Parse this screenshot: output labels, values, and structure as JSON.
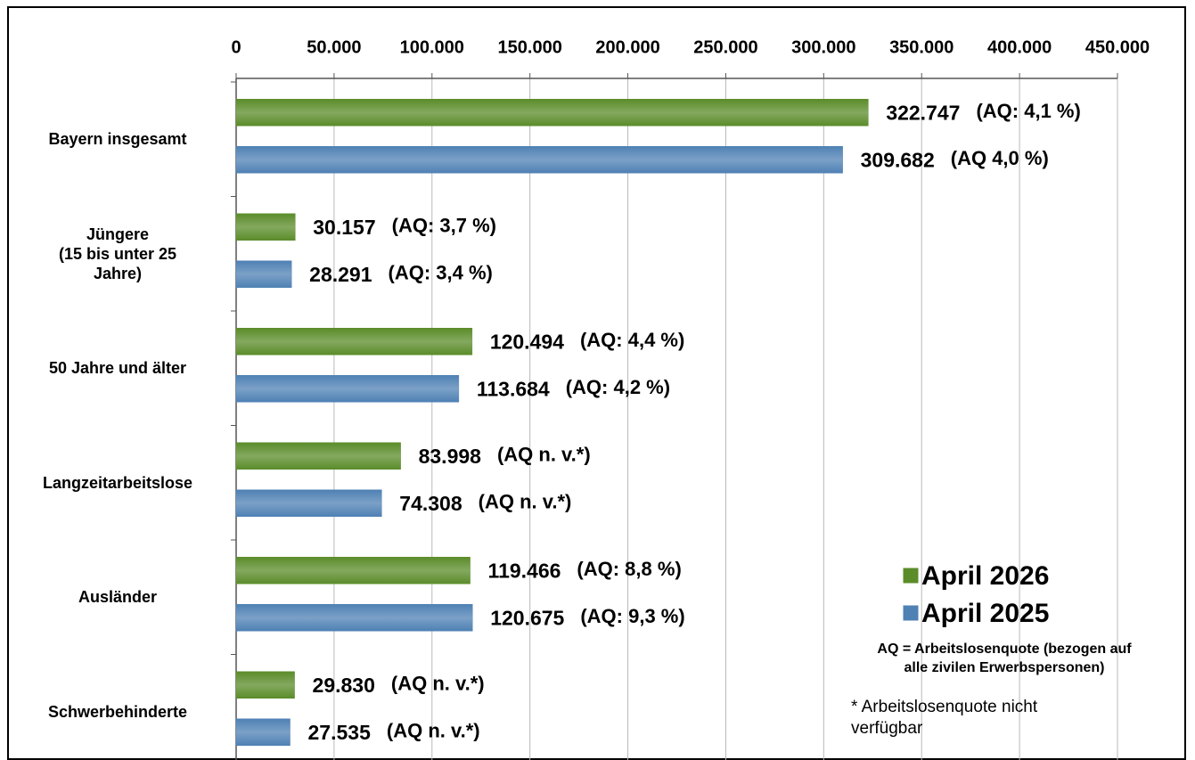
{
  "chart_data": {
    "type": "hbar",
    "categories": [
      "Bayern insgesamt",
      "Jüngere\n(15 bis unter 25\nJahre)",
      "50 Jahre und älter",
      "Langzeitarbeitslose",
      "Ausländer",
      "Schwerbehinderte"
    ],
    "series": [
      {
        "name": "April 2026",
        "color": "#5b8c2a",
        "values": [
          322747,
          30157,
          120494,
          83998,
          119466,
          29830
        ],
        "value_labels": [
          "322.747",
          "30.157",
          "120.494",
          "83.998",
          "119.466",
          "29.830"
        ],
        "aq_labels": [
          "(AQ: 4,1 %)",
          "(AQ: 3,7 %)",
          "(AQ: 4,4 %)",
          "(AQ n. v.*)",
          "(AQ: 8,8 %)",
          "(AQ n. v.*)"
        ]
      },
      {
        "name": "April 2025",
        "color": "#4f81b4",
        "values": [
          309682,
          28291,
          113684,
          74308,
          120675,
          27535
        ],
        "value_labels": [
          "309.682",
          "28.291",
          "113.684",
          "74.308",
          "120.675",
          "27.535"
        ],
        "aq_labels": [
          "(AQ 4,0 %)",
          "(AQ: 3,4 %)",
          "(AQ: 4,2 %)",
          "(AQ n. v.*)",
          "(AQ: 9,3 %)",
          "(AQ n. v.*)"
        ]
      }
    ],
    "xlim": [
      0,
      450000
    ],
    "xticks": [
      0,
      {
        "value": 50000,
        "label": "50.000"
      },
      {
        "value": 100000,
        "label": "100.000"
      },
      {
        "value": 150000,
        "label": "150.000"
      },
      {
        "value": 200000,
        "label": "200.000"
      },
      {
        "value": 250000,
        "label": "250.000"
      },
      {
        "value": 300000,
        "label": "300.000"
      },
      {
        "value": 350000,
        "label": "350.000"
      },
      {
        "value": 400000,
        "label": "400.000"
      },
      {
        "value": 450000,
        "label": "450.000"
      }
    ],
    "grid": true,
    "legend": "lower right",
    "notes": [
      "AQ = Arbeitslosenquote (bezogen auf\nalle zivilen Erwerbspersonen)",
      "*  Arbeitslosenquote nicht\nverfügbar"
    ]
  }
}
